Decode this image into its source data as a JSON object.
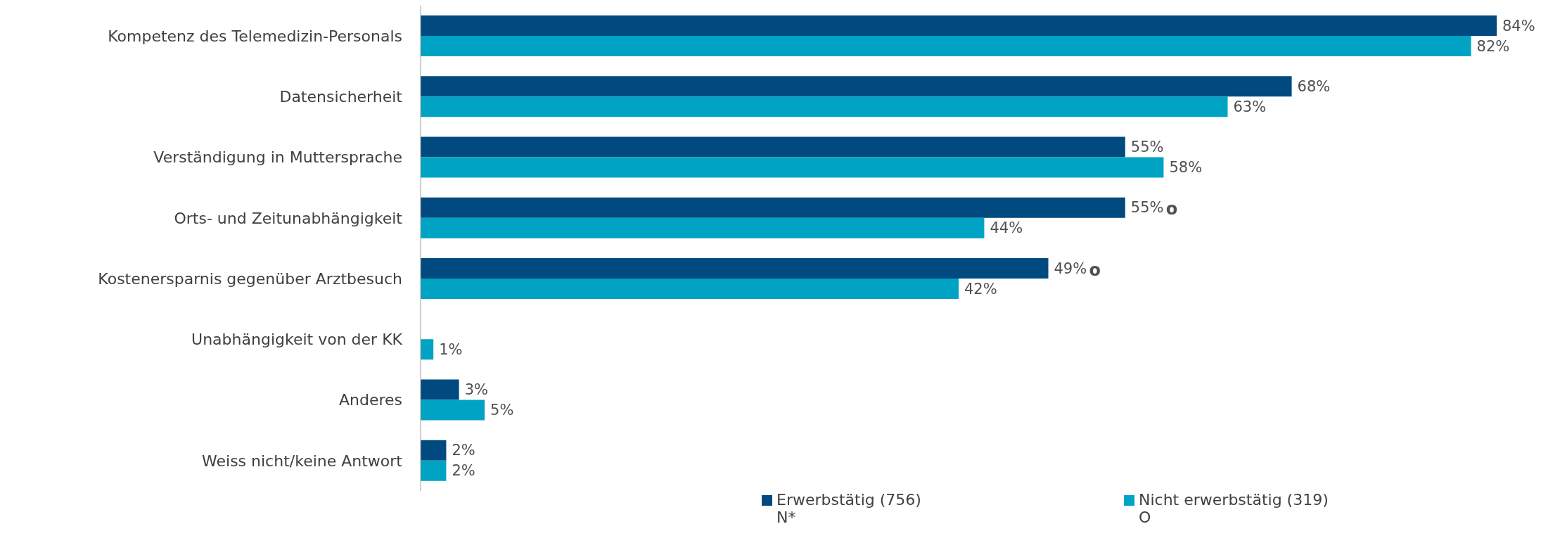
{
  "chart_data": {
    "type": "bar",
    "orientation": "horizontal",
    "categories": [
      "Kompetenz des Telemedizin-Personals",
      "Datensicherheit",
      "Verständigung in Muttersprache",
      "Orts- und Zeitunabhängigkeit",
      "Kostenersparnis gegenüber Arztbesuch",
      "Unabhängigkeit von der KK",
      "Anderes",
      "Weiss nicht/keine Antwort"
    ],
    "series": [
      {
        "name": "Erwerbstätig (756)\nN*",
        "color": "#004a7f",
        "values": [
          84,
          68,
          55,
          55,
          49,
          null,
          3,
          2
        ],
        "value_labels": [
          "84%",
          "68%",
          "55%",
          "55%",
          "49%",
          null,
          "3%",
          "2%"
        ]
      },
      {
        "name": "Nicht erwerbstätig (319)\nO",
        "color": "#00a3c4",
        "values": [
          82,
          63,
          58,
          44,
          42,
          1,
          5,
          2
        ],
        "value_labels": [
          "82%",
          "63%",
          "58%",
          "44%",
          "42%",
          "1%",
          "5%",
          "2%"
        ]
      }
    ],
    "tick_labels": "y",
    "grid": false,
    "legend": "bottom",
    "annotations": [
      {
        "text": "o",
        "x": 55,
        "y": "Orts- und Zeitunabhängigkeit"
      },
      {
        "text": "o",
        "x": 49,
        "y": "Kostenersparnis gegenüber Arztbesuch"
      }
    ]
  }
}
